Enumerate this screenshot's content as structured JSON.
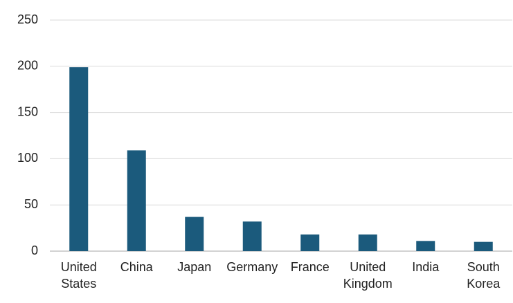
{
  "chart_data": {
    "type": "bar",
    "categories": [
      "United States",
      "China",
      "Japan",
      "Germany",
      "France",
      "United Kingdom",
      "India",
      "South Korea"
    ],
    "values": [
      199,
      109,
      37,
      32,
      18,
      18,
      11,
      10
    ],
    "color": "#1b5a7c",
    "ylim": [
      0,
      250
    ],
    "yticks": [
      0,
      50,
      100,
      150,
      200,
      250
    ],
    "grid": true
  }
}
